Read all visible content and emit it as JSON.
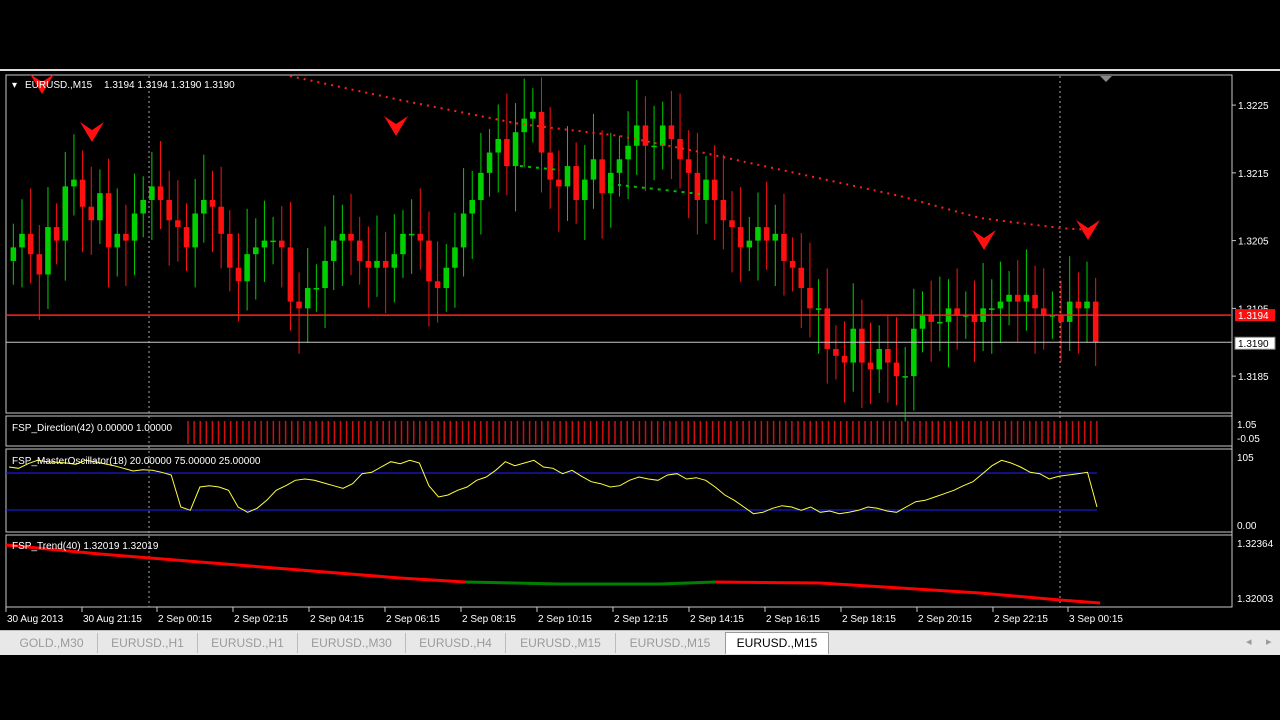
{
  "main_chart": {
    "title": "EURUSD.,M15",
    "ohlc": "1.3194 1.3194 1.3190 1.3190",
    "price_min": 1.318,
    "price_max": 1.3229,
    "y_ticks": [
      "1.3225",
      "1.3215",
      "1.3205",
      "1.3195",
      "1.3185"
    ],
    "bid_label": "1.3194",
    "ask_label": "1.3190",
    "bid_price": 1.3194,
    "ask_price": 1.319
  },
  "indicators": {
    "direction": {
      "label": "FSP_Direction(42) 0.00000 1.00000",
      "scale_top": "1.05",
      "scale_bottom": "-0.05"
    },
    "master_oscillator": {
      "label": "FSP_MasterOscillator(18) 20.00000 75.00000 25.00000",
      "scale_top": "105",
      "scale_bottom": "0.00",
      "level_high": 75,
      "level_low": 25
    },
    "trend": {
      "label": "FSP_Trend(40) 1.32019 1.32019",
      "scale_top": "1.32364",
      "scale_bottom": "1.32003"
    }
  },
  "time_axis": [
    "30 Aug 2013",
    "30 Aug 21:15",
    "2 Sep 00:15",
    "2 Sep 02:15",
    "2 Sep 04:15",
    "2 Sep 06:15",
    "2 Sep 08:15",
    "2 Sep 10:15",
    "2 Sep 12:15",
    "2 Sep 14:15",
    "2 Sep 16:15",
    "2 Sep 18:15",
    "2 Sep 20:15",
    "2 Sep 22:15",
    "3 Sep 00:15"
  ],
  "tabs": [
    {
      "label": "GOLD.,M30"
    },
    {
      "label": "EURUSD.,H1"
    },
    {
      "label": "EURUSD.,H1"
    },
    {
      "label": "EURUSD.,M30"
    },
    {
      "label": "EURUSD.,H4"
    },
    {
      "label": "EURUSD.,M15"
    },
    {
      "label": "EURUSD.,M15"
    },
    {
      "label": "EURUSD.,M15"
    }
  ],
  "active_tab": 7,
  "tab_scroll": {
    "left": "◂",
    "right": "▸"
  },
  "colors": {
    "bull": "#00d000",
    "bear": "#ff1010",
    "dotted_red": "#ff2020",
    "oscillator": "#ffff40",
    "osc_levels": "#2020ff",
    "trend_red": "#ff0000",
    "trend_green": "#008000"
  },
  "candle_closes": [
    1.3204,
    1.3206,
    1.3203,
    1.32,
    1.3207,
    1.3205,
    1.3213,
    1.3214,
    1.321,
    1.3208,
    1.3212,
    1.3204,
    1.3206,
    1.3205,
    1.3209,
    1.3211,
    1.3213,
    1.3211,
    1.3208,
    1.3207,
    1.3204,
    1.3209,
    1.3211,
    1.321,
    1.3206,
    1.3201,
    1.3199,
    1.3203,
    1.3204,
    1.3205,
    1.3205,
    1.3204,
    1.3196,
    1.3195,
    1.3198,
    1.3198,
    1.3202,
    1.3205,
    1.3206,
    1.3205,
    1.3202,
    1.3201,
    1.3202,
    1.3201,
    1.3203,
    1.3206,
    1.3206,
    1.3205,
    1.3199,
    1.3198,
    1.3201,
    1.3204,
    1.3209,
    1.3211,
    1.3215,
    1.3218,
    1.322,
    1.3216,
    1.3221,
    1.3223,
    1.3224,
    1.3218,
    1.3214,
    1.3213,
    1.3216,
    1.3211,
    1.3214,
    1.3217,
    1.3212,
    1.3215,
    1.3217,
    1.3219,
    1.3222,
    1.3219,
    1.3219,
    1.3222,
    1.322,
    1.3217,
    1.3215,
    1.3211,
    1.3214,
    1.3211,
    1.3208,
    1.3207,
    1.3204,
    1.3205,
    1.3207,
    1.3205,
    1.3206,
    1.3202,
    1.3201,
    1.3198,
    1.3195,
    1.3195,
    1.3189,
    1.3188,
    1.3187,
    1.3192,
    1.3187,
    1.3186,
    1.3189,
    1.3187,
    1.3185,
    1.3185,
    1.3192,
    1.3194,
    1.3193,
    1.3193,
    1.3195,
    1.3194,
    1.3194,
    1.3193,
    1.3195,
    1.3195,
    1.3196,
    1.3197,
    1.3196,
    1.3197,
    1.3195,
    1.3194,
    1.3194,
    1.3193,
    1.3196,
    1.3195,
    1.3196,
    1.319
  ]
}
